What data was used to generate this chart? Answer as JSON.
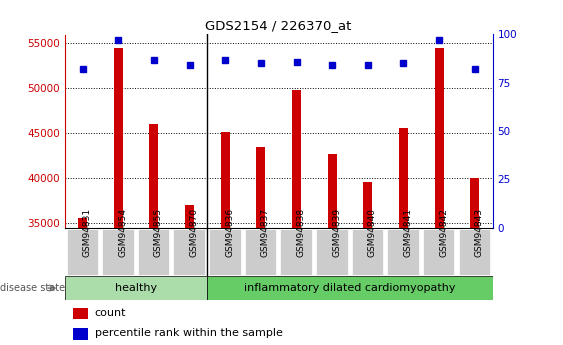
{
  "title": "GDS2154 / 226370_at",
  "samples": [
    "GSM94831",
    "GSM94854",
    "GSM94855",
    "GSM94870",
    "GSM94836",
    "GSM94837",
    "GSM94838",
    "GSM94839",
    "GSM94840",
    "GSM94841",
    "GSM94842",
    "GSM94843"
  ],
  "counts": [
    35600,
    54500,
    46000,
    37000,
    45200,
    43500,
    49800,
    42700,
    39600,
    45600,
    54500,
    40000
  ],
  "percentile_ranks": [
    82,
    97,
    87,
    84,
    87,
    85,
    86,
    84,
    84,
    85,
    97,
    82
  ],
  "ylim_left": [
    34500,
    56000
  ],
  "ylim_right": [
    0,
    100
  ],
  "yticks_left": [
    35000,
    40000,
    45000,
    50000,
    55000
  ],
  "yticks_right": [
    0,
    25,
    50,
    75,
    100
  ],
  "bar_color": "#cc0000",
  "dot_color": "#0000cc",
  "healthy_color": "#aaddaa",
  "idc_color": "#66cc66",
  "healthy_samples": 4,
  "disease_label_healthy": "healthy",
  "disease_label_idc": "inflammatory dilated cardiomyopathy",
  "disease_state_label": "disease state",
  "legend_count": "count",
  "legend_percentile": "percentile rank within the sample",
  "background_color": "#ffffff"
}
